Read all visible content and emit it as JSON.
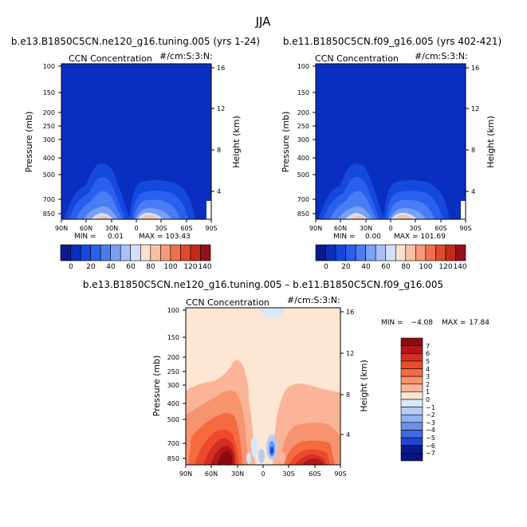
{
  "figure_title": "JJA",
  "colors": {
    "panel_blue": "#0a2fc0",
    "diff_background": "#fde6d3"
  },
  "chart_data": [
    {
      "type": "heatmap",
      "id": "top-left",
      "title": "b.e13.B1850C5CN.ne120_g16.tuning.005 (yrs 1-24)",
      "left_label": "CCN Concentration",
      "right_label": "#/cm:S:3:N:",
      "ylabel": "Pressure (mb)",
      "y2label": "Height (km)",
      "pressure_ticks": [
        "100",
        "150",
        "200",
        "250",
        "300",
        "400",
        "500",
        "700",
        "850"
      ],
      "height_ticks": [
        "16",
        "12",
        "8",
        "4"
      ],
      "x_ticks": [
        "90N",
        "60N",
        "30N",
        "0",
        "30S",
        "60S",
        "90S"
      ],
      "min_text": "MIN =",
      "min_value": "0.01",
      "max_text": "MAX = 103.43",
      "colorbar_labels": [
        "0",
        "20",
        "40",
        "60",
        "80",
        "100",
        "120",
        "140"
      ],
      "colorbar_colors": [
        "#0b1a8a",
        "#0a2fc0",
        "#1548dc",
        "#2a60f0",
        "#4a7cf4",
        "#7aa0f7",
        "#a8c2f8",
        "#d2e0fb",
        "#fbe0cf",
        "#f9c0a5",
        "#f59a78",
        "#ef6f4d",
        "#dd4a2e",
        "#c22a1c",
        "#961015"
      ]
    },
    {
      "type": "heatmap",
      "id": "top-right",
      "title": "b.e11.B1850C5CN.f09_g16.005 (yrs 402-421)",
      "left_label": "CCN Concentration",
      "right_label": "#/cm:S:3:N:",
      "ylabel": "Pressure (mb)",
      "y2label": "Height (km)",
      "pressure_ticks": [
        "100",
        "150",
        "200",
        "250",
        "300",
        "400",
        "500",
        "700",
        "850"
      ],
      "height_ticks": [
        "16",
        "12",
        "8",
        "4"
      ],
      "x_ticks": [
        "90N",
        "60N",
        "30N",
        "0",
        "30S",
        "60S",
        "90S"
      ],
      "min_text": "MIN =",
      "min_value": "0.00",
      "max_text": "MAX = 101.69",
      "colorbar_labels": [
        "0",
        "20",
        "40",
        "60",
        "80",
        "100",
        "120",
        "140"
      ],
      "colorbar_colors": [
        "#0b1a8a",
        "#0a2fc0",
        "#1548dc",
        "#2a60f0",
        "#4a7cf4",
        "#7aa0f7",
        "#a8c2f8",
        "#d2e0fb",
        "#fbe0cf",
        "#f9c0a5",
        "#f59a78",
        "#ef6f4d",
        "#dd4a2e",
        "#c22a1c",
        "#961015"
      ]
    },
    {
      "type": "heatmap",
      "id": "difference",
      "title": "b.e13.B1850C5CN.ne120_g16.tuning.005 – b.e11.B1850C5CN.f09_g16.005",
      "left_label": "CCN Concentration",
      "right_label": "#/cm:S:3:N:",
      "ylabel": "Pressure (mb)",
      "y2label": "Height (km)",
      "pressure_ticks": [
        "100",
        "150",
        "200",
        "250",
        "300",
        "400",
        "500",
        "700",
        "850"
      ],
      "height_ticks": [
        "16",
        "12",
        "8",
        "4"
      ],
      "x_ticks": [
        "90N",
        "60N",
        "30N",
        "0",
        "30S",
        "60S",
        "90S"
      ],
      "min_text": "MIN =",
      "min_value": "−4.08",
      "max_text": "MAX =",
      "max_value": "17.84",
      "colorbar_labels": [
        "7",
        "6",
        "5",
        "4",
        "3",
        "2",
        "1",
        "0",
        "−1",
        "−2",
        "−3",
        "−4",
        "−5",
        "−6",
        "−7"
      ],
      "colorbar_colors": [
        "#8b0a10",
        "#b3151a",
        "#d22f22",
        "#ec4a2b",
        "#f46b3f",
        "#f79470",
        "#fab497",
        "#fde6d3",
        "#d8e8fb",
        "#b6cdf5",
        "#92b0ee",
        "#6e92e6",
        "#3f6ae0",
        "#1f45d2",
        "#0b1a8a",
        "#091480"
      ]
    }
  ]
}
